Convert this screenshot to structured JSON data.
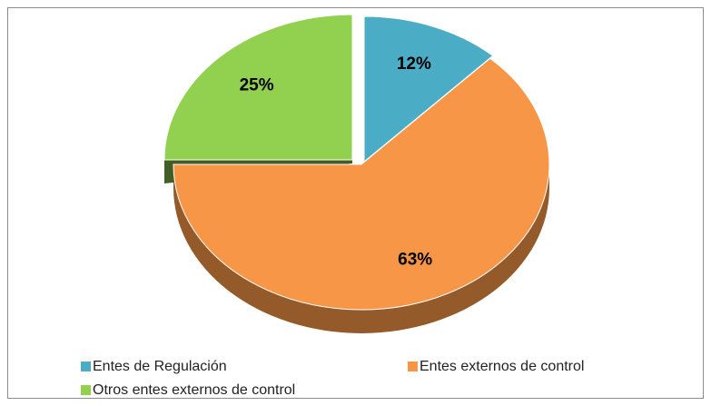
{
  "chart_data": {
    "type": "pie",
    "categories": [
      "Entes de Regulación",
      "Entes externos de control",
      "Otros entes externos de control"
    ],
    "values": [
      12,
      63,
      25
    ],
    "value_labels": [
      "12%",
      "63%",
      "25%"
    ],
    "colors": [
      "#4bacc6",
      "#f79646",
      "#92d050"
    ]
  }
}
